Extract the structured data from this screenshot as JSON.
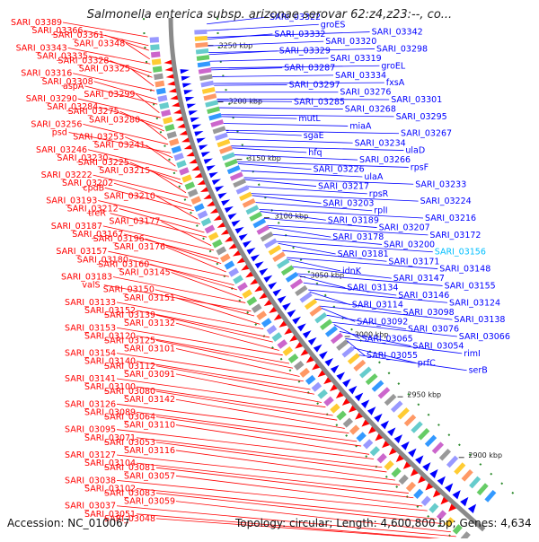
{
  "title": "Salmonella enterica subsp. arizonae serovar 62:z4,z23:--, co...",
  "accession_label": "Accession: NC_010067",
  "info_label": "Topology: circular; Length: 4,600,800 bp; Genes: 4,634",
  "colors": {
    "left_genes": "#ff0000",
    "right_genes": "#0000ff",
    "highlight": "#00bfff",
    "backbone": "#8a8a8a",
    "tick": "#2e8b2e"
  },
  "kbp_markers": [
    "3250 kbp",
    "3200 kbp",
    "3150 kbp",
    "3100 kbp",
    "3050 kbp",
    "3000 kbp",
    "2950 kbp",
    "2900 kbp"
  ],
  "left_labels": [
    "SARI_03389",
    "SARI_03366",
    "SARI_03361",
    "SARI_03348",
    "SARI_03343",
    "SARI_03335",
    "SARI_03328",
    "SARI_03325",
    "SARI_03316",
    "SARI_03308",
    "aspA",
    "SARI_03299",
    "SARI_03290",
    "SARI_03284",
    "SARI_03275",
    "SARI_03280",
    "SARI_03256",
    "psd",
    "SARI_03253",
    "SARI_03241",
    "SARI_03246",
    "SARI_03230",
    "SARI_03225",
    "SARI_03215",
    "SARI_03222",
    "SARI_03202",
    "cpdB",
    "SARI_03210",
    "SARI_03193",
    "SARI_03212",
    "treR",
    "SARI_03177",
    "SARI_03187",
    "SARI_03167",
    "SARI_03196",
    "SARI_03176",
    "SARI_03157",
    "SARI_03180",
    "SARI_03160",
    "SARI_03145",
    "SARI_03183",
    "valS",
    "SARI_03150",
    "SARI_03151",
    "SARI_03133",
    "SARI_03152",
    "SARI_03139",
    "SARI_03132",
    "SARI_03153",
    "SARI_03120",
    "SARI_03125",
    "SARI_03101",
    "SARI_03154",
    "SARI_03140",
    "SARI_03112",
    "SARI_03091",
    "SARI_03141",
    "SARI_03100",
    "SARI_03080",
    "SARI_03142",
    "SARI_03126",
    "SARI_03089",
    "SARI_03064",
    "SARI_03110",
    "SARI_03095",
    "SARI_03071",
    "SARI_03053",
    "SARI_03116",
    "SARI_03127",
    "SARI_03104",
    "SARI_03081",
    "SARI_03057",
    "SARI_03038",
    "SARI_03102",
    "SARI_03083",
    "SARI_03059",
    "SARI_03037",
    "SARI_03051",
    "SARI_03048"
  ],
  "right_labels": [
    "SARI_03322",
    "groES",
    "SARI_03342",
    "SARI_03332",
    "SARI_03320",
    "SARI_03298",
    "SARI_03329",
    "SARI_03319",
    "groEL",
    "SARI_03287",
    "SARI_03334",
    "fxsA",
    "SARI_03297",
    "SARI_03276",
    "SARI_03301",
    "SARI_03285",
    "SARI_03268",
    "SARI_03295",
    "mutL",
    "miaA",
    "SARI_03267",
    "sgaE",
    "SARI_03234",
    "ulaD",
    "hfq",
    "SARI_03266",
    "rpsF",
    "SARI_03226",
    "ulaA",
    "SARI_03233",
    "SARI_03217",
    "rpsR",
    "SARI_03224",
    "SARI_03203",
    "rplI",
    "SARI_03216",
    "SARI_03189",
    "SARI_03207",
    "SARI_03172",
    "SARI_03178",
    "SARI_03200",
    "SARI_03156",
    "SARI_03181",
    "SARI_03171",
    "SARI_03148",
    "idnK",
    "SARI_03147",
    "SARI_03155",
    "SARI_03134",
    "SARI_03146",
    "SARI_03124",
    "SARI_03114",
    "SARI_03098",
    "SARI_03138",
    "SARI_03092",
    "SARI_03076",
    "SARI_03066",
    "SARI_03065",
    "SARI_03054",
    "rimI",
    "SARI_03055",
    "prfC",
    "serB"
  ]
}
